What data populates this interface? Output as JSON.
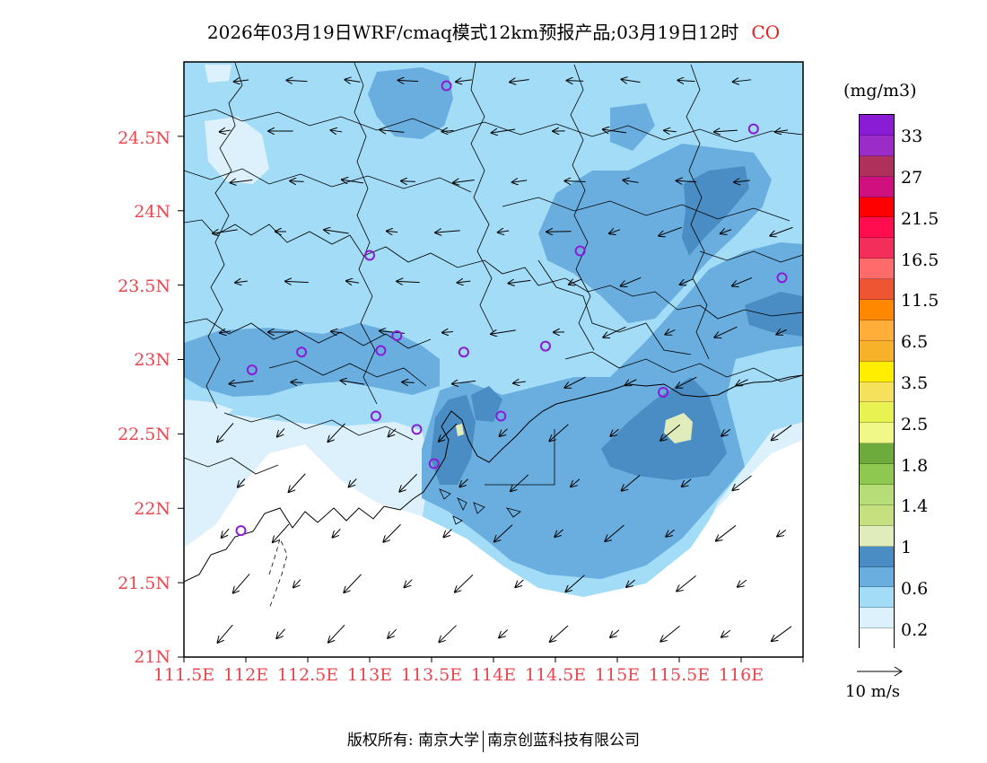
{
  "title": {
    "main": "2026年03月19日WRF/cmaq模式12km预报产品;03月19日12时",
    "variable": "CO"
  },
  "legend": {
    "unit": "(mg/m3)",
    "colors": [
      "#8a1cd6",
      "#9b2cc8",
      "#b0305c",
      "#d0107e",
      "#ff0000",
      "#ff0d4e",
      "#f42e5a",
      "#ff6a6a",
      "#ee5533",
      "#ff8800",
      "#ffae3a",
      "#f8b22a",
      "#ffee00",
      "#f6e15c",
      "#e8f250",
      "#f0f888",
      "#6dab3c",
      "#8ec850",
      "#b6dd78",
      "#c6e080",
      "#e0ecbc",
      "#4a8dc4",
      "#6aaee0",
      "#a2dcf6",
      "#dcf1fb",
      "#ffffff"
    ],
    "labels": [
      "33",
      "27",
      "21.5",
      "16.5",
      "11.5",
      "6.5",
      "3.5",
      "2.5",
      "1.8",
      "1.4",
      "1",
      "0.6",
      "0.2"
    ]
  },
  "axes": {
    "y_labels": [
      "24.5N",
      "24N",
      "23.5N",
      "23N",
      "22.5N",
      "22N",
      "21.5N",
      "21N"
    ],
    "x_labels": [
      "111.5E",
      "112E",
      "112.5E",
      "113E",
      "113.5E",
      "114E",
      "114.5E",
      "115E",
      "115.5E",
      "116E"
    ]
  },
  "wind": {
    "reference_label": "10 m/s"
  },
  "stations": [
    {
      "lon": 113.62,
      "lat": 24.84
    },
    {
      "lon": 116.1,
      "lat": 24.55
    },
    {
      "lon": 113.0,
      "lat": 23.7
    },
    {
      "lon": 114.7,
      "lat": 23.73
    },
    {
      "lon": 116.33,
      "lat": 23.55
    },
    {
      "lon": 112.05,
      "lat": 22.93
    },
    {
      "lon": 112.45,
      "lat": 23.05
    },
    {
      "lon": 113.09,
      "lat": 23.06
    },
    {
      "lon": 113.22,
      "lat": 23.16
    },
    {
      "lon": 113.76,
      "lat": 23.05
    },
    {
      "lon": 114.42,
      "lat": 23.09
    },
    {
      "lon": 115.37,
      "lat": 22.78
    },
    {
      "lon": 113.05,
      "lat": 22.62
    },
    {
      "lon": 113.38,
      "lat": 22.53
    },
    {
      "lon": 114.06,
      "lat": 22.62
    },
    {
      "lon": 113.52,
      "lat": 22.3
    },
    {
      "lon": 111.96,
      "lat": 21.85
    }
  ],
  "footer": {
    "copyright": "版权所有: 南京大学",
    "company": "南京创蓝科技有限公司"
  }
}
